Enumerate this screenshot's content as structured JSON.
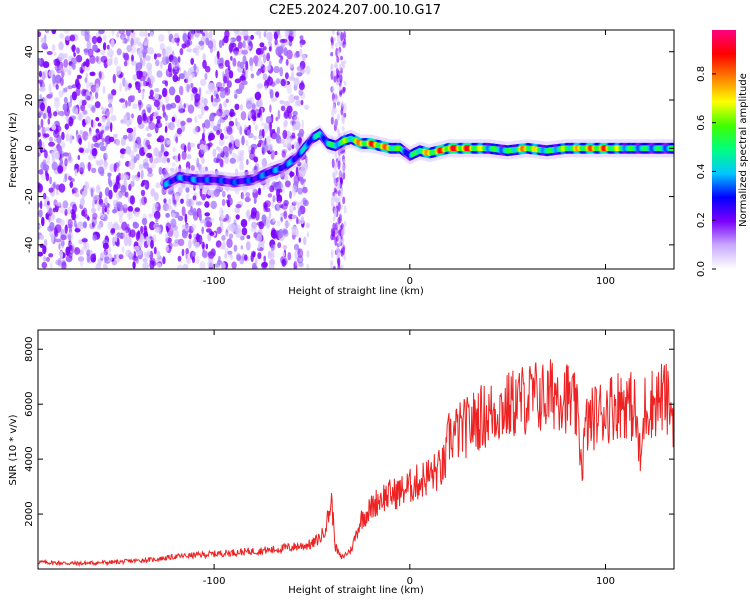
{
  "title": "C2E5.2024.207.00.10.G17",
  "chart_data": [
    {
      "type": "heatmap",
      "xlabel": "Height of straight line (km)",
      "ylabel": "Frequency (Hz)",
      "xlim": [
        -190,
        135
      ],
      "ylim": [
        -50,
        49
      ],
      "xticks": [
        -100,
        0,
        100
      ],
      "yticks": [
        -40,
        -20,
        0,
        20,
        40
      ],
      "colorbar": {
        "label": "Normalized spectral amplitude",
        "range": [
          0.0,
          0.98
        ],
        "ticks": [
          "0.0",
          "0.2",
          "0.4",
          "0.6",
          "0.8"
        ],
        "tick_values": [
          0.0,
          0.2,
          0.4,
          0.6,
          0.8
        ],
        "colormap": [
          "#ffffff",
          "#c8a8ff",
          "#7b00ff",
          "#0000ff",
          "#00c8ff",
          "#00ff80",
          "#40ff00",
          "#ffff00",
          "#ff8000",
          "#ff0000",
          "#ff0080"
        ]
      },
      "noise_region_x": [
        -190,
        -52
      ],
      "noise_band_x": [
        -40,
        -33
      ],
      "ridge": {
        "x": [
          -125,
          -118,
          -110,
          -100,
          -90,
          -80,
          -72,
          -65,
          -58,
          -54,
          -50,
          -46,
          -42,
          -38,
          -34,
          -30,
          -25,
          -20,
          -15,
          -10,
          -5,
          0,
          5,
          10,
          15,
          20,
          30,
          40,
          50,
          60,
          70,
          80,
          90,
          100,
          110,
          120,
          135
        ],
        "y": [
          -15,
          -12,
          -13,
          -13,
          -14,
          -13,
          -10,
          -8,
          -4,
          0,
          4,
          6,
          2,
          1,
          3,
          4,
          2,
          2,
          1,
          0,
          0,
          -3,
          -1,
          -2,
          -1,
          0,
          0,
          0,
          -1,
          0,
          -1,
          0,
          0,
          0,
          0,
          0,
          0
        ],
        "amplitude": [
          0.4,
          0.4,
          0.4,
          0.35,
          0.35,
          0.35,
          0.4,
          0.4,
          0.4,
          0.45,
          0.45,
          0.5,
          0.5,
          0.6,
          0.65,
          0.7,
          0.85,
          0.9,
          0.9,
          0.8,
          0.6,
          0.4,
          0.75,
          0.8,
          0.9,
          0.95,
          0.95,
          0.6,
          0.55,
          0.9,
          0.55,
          0.7,
          0.85,
          0.9,
          0.6,
          0.55,
          0.55
        ]
      },
      "colors": {
        "bad": "#7b00ff",
        "faint": "#d9c6ff"
      }
    },
    {
      "type": "line",
      "xlabel": "Height of straight line (km)",
      "ylabel": "SNR (10 * v/v)",
      "xlim": [
        -190,
        135
      ],
      "ylim": [
        0,
        8700
      ],
      "xticks": [
        -100,
        0,
        100
      ],
      "yticks": [
        2000,
        4000,
        6000,
        8000
      ],
      "series": [
        {
          "color": "#ee2222",
          "x": [
            -190,
            -170,
            -150,
            -130,
            -120,
            -110,
            -100,
            -90,
            -80,
            -70,
            -60,
            -50,
            -45,
            -42,
            -40,
            -38,
            -35,
            -30,
            -25,
            -20,
            -15,
            -10,
            -5,
            0,
            5,
            10,
            15,
            18,
            20,
            25,
            30,
            35,
            40,
            45,
            50,
            55,
            60,
            65,
            70,
            75,
            80,
            85,
            88,
            90,
            95,
            100,
            105,
            110,
            115,
            118,
            120,
            125,
            130,
            135
          ],
          "y": [
            250,
            200,
            250,
            350,
            450,
            500,
            550,
            600,
            650,
            700,
            800,
            900,
            1200,
            1800,
            2500,
            800,
            400,
            700,
            1800,
            2200,
            2600,
            2700,
            2800,
            3000,
            3200,
            3400,
            3600,
            3800,
            4800,
            5000,
            5200,
            5500,
            5600,
            5800,
            5900,
            6100,
            6200,
            6300,
            6200,
            6500,
            6300,
            5800,
            3800,
            5200,
            5600,
            5800,
            6000,
            6100,
            5800,
            3800,
            5900,
            6100,
            6300,
            5600
          ]
        }
      ]
    }
  ]
}
